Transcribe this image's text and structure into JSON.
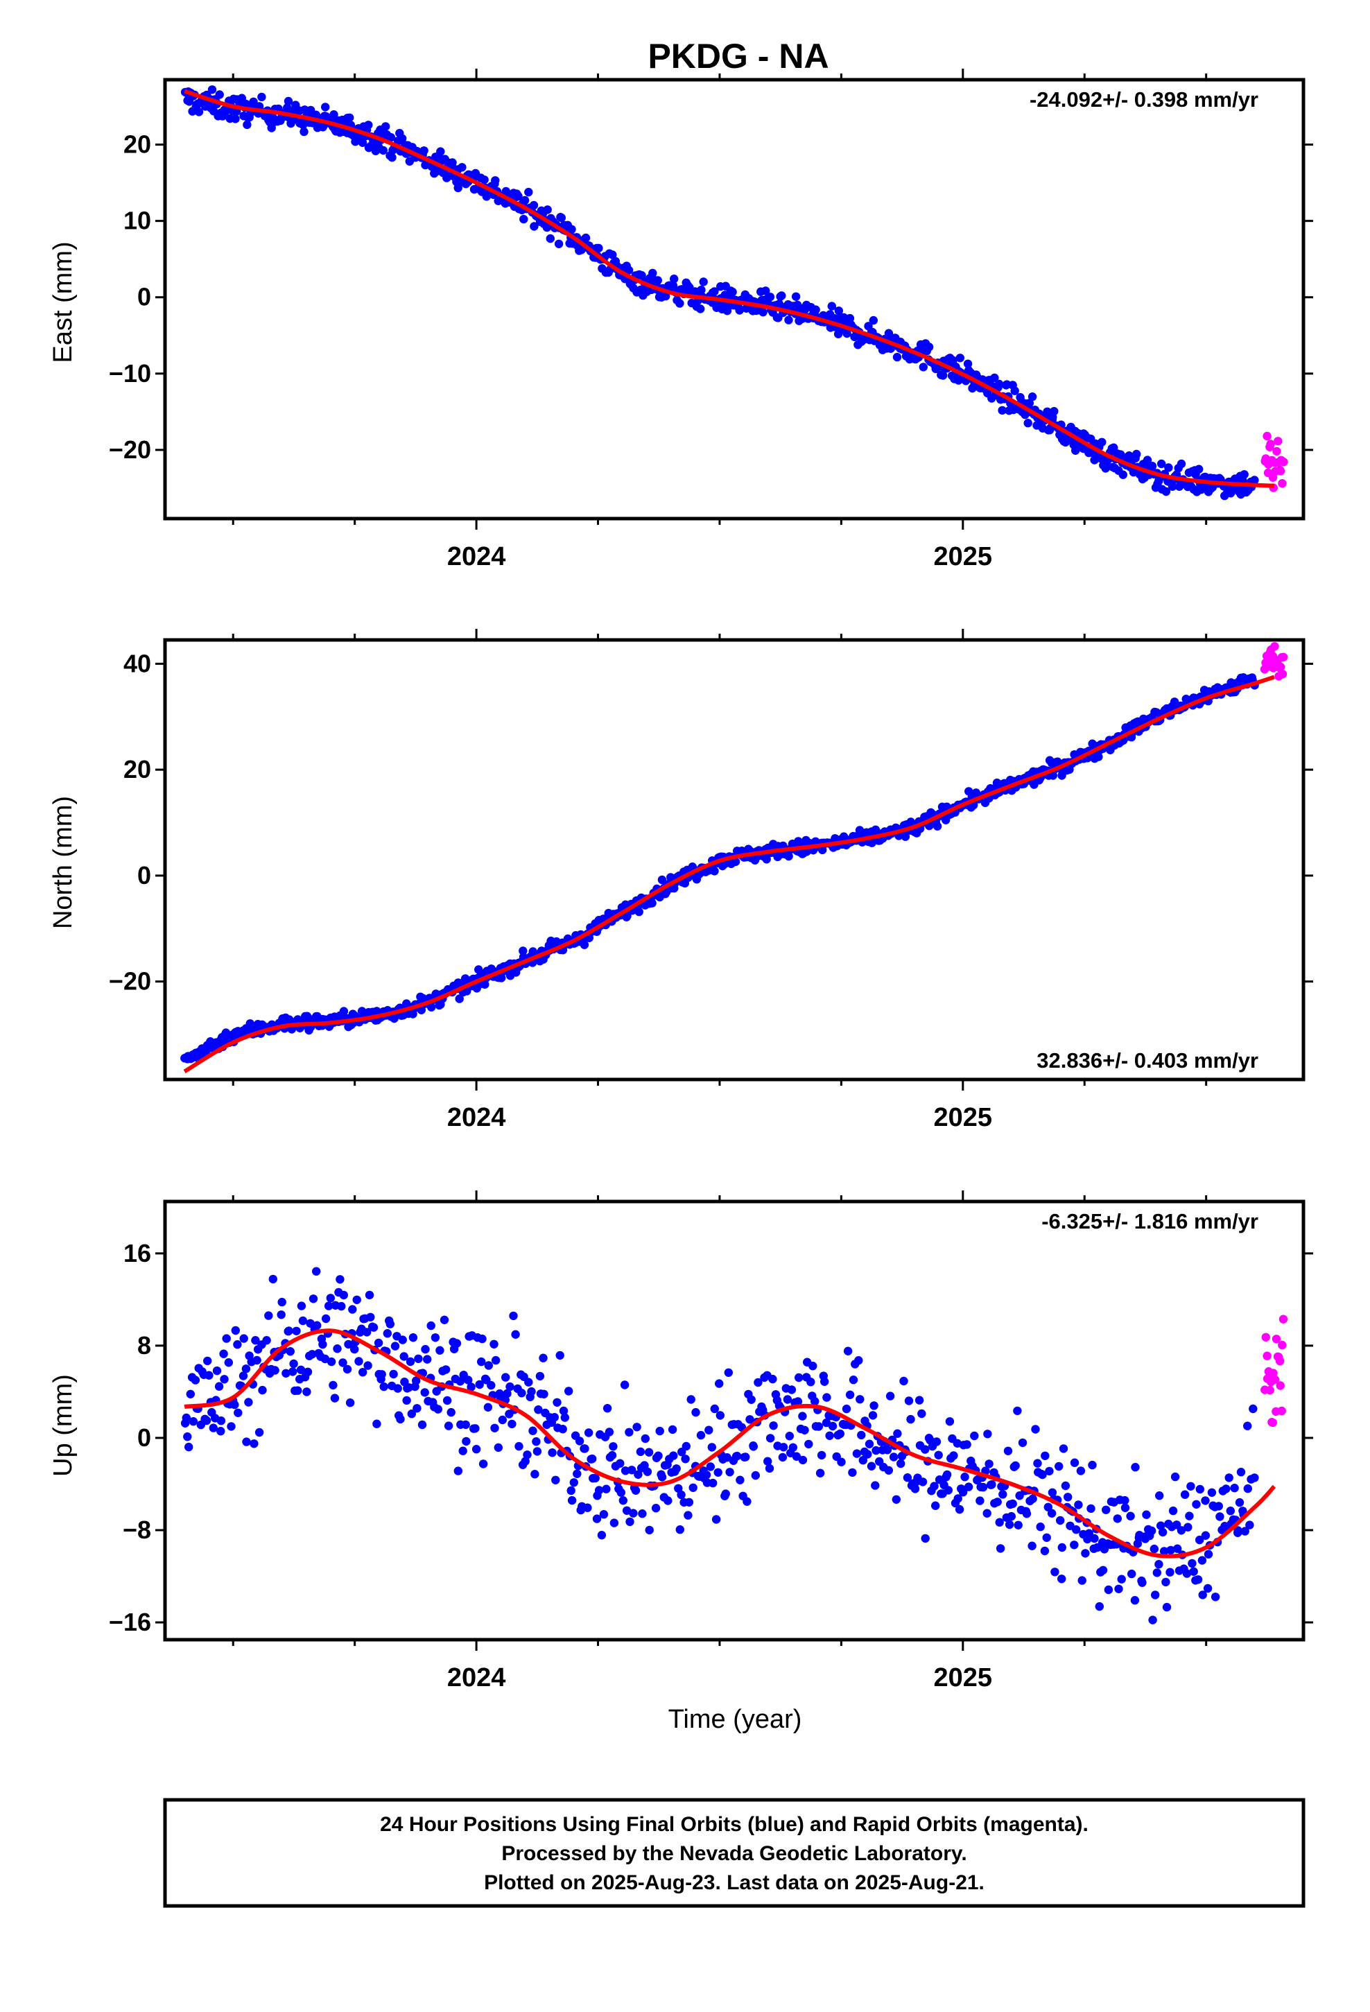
{
  "chart_data": [
    {
      "type": "scatter",
      "title": "PKDG - NA",
      "ylabel": "East (mm)",
      "rate": "-24.092+/- 0.398 mm/yr",
      "ylim": [
        -29,
        28.5
      ],
      "yticks": [
        -20,
        -10,
        0,
        10,
        20
      ],
      "xlim": [
        2023.36,
        2025.7
      ],
      "xticks": [
        2024,
        2025
      ],
      "x": [
        2023.4,
        2023.5,
        2023.6,
        2023.7,
        2023.8,
        2023.9,
        2024.0,
        2024.1,
        2024.2,
        2024.3,
        2024.4,
        2024.5,
        2024.6,
        2024.7,
        2024.8,
        2024.9,
        2025.0,
        2025.1,
        2025.2,
        2025.3,
        2025.4,
        2025.5,
        2025.6,
        2025.64
      ],
      "series": [
        {
          "name": "Final Orbits",
          "color": "#0000ff",
          "noise": 1.2,
          "x": [
            2023.4,
            2023.5,
            2023.6,
            2023.7,
            2023.8,
            2023.9,
            2024.0,
            2024.1,
            2024.2,
            2024.3,
            2024.4,
            2024.5,
            2024.6,
            2024.7,
            2024.8,
            2024.9,
            2025.0,
            2025.1,
            2025.2,
            2025.3,
            2025.4,
            2025.5,
            2025.6
          ],
          "values": [
            26.0,
            24.7,
            24.0,
            22.8,
            21.0,
            18.0,
            15.2,
            11.8,
            8.0,
            3.0,
            0.8,
            -0.2,
            -1.2,
            -2.6,
            -4.8,
            -7.0,
            -10.0,
            -13.5,
            -17.3,
            -21.0,
            -23.3,
            -24.2,
            -24.5
          ]
        },
        {
          "name": "Rapid Orbits",
          "color": "#ff00ff",
          "noise": 2.5,
          "x": [
            2025.62,
            2025.63,
            2025.64,
            2025.65,
            2025.66
          ],
          "values": [
            -22.0,
            -20.5,
            -23.5,
            -21.0,
            -24.0
          ]
        },
        {
          "name": "Fit",
          "color": "#ff0000",
          "values": [
            27.0,
            25.0,
            24.1,
            22.8,
            20.8,
            18.0,
            15.0,
            11.7,
            7.8,
            3.2,
            0.6,
            -0.3,
            -1.3,
            -2.8,
            -4.8,
            -7.2,
            -10.1,
            -13.5,
            -17.2,
            -20.8,
            -23.2,
            -24.2,
            -24.6,
            -24.7
          ]
        }
      ]
    },
    {
      "type": "scatter",
      "ylabel": "North (mm)",
      "rate": "32.836+/- 0.403 mm/yr",
      "ylim": [
        -38.5,
        44.5
      ],
      "yticks": [
        -20,
        0,
        20,
        40
      ],
      "xlim": [
        2023.36,
        2025.7
      ],
      "xticks": [
        2024,
        2025
      ],
      "x": [
        2023.4,
        2023.5,
        2023.6,
        2023.7,
        2023.8,
        2023.9,
        2024.0,
        2024.1,
        2024.2,
        2024.3,
        2024.4,
        2024.5,
        2024.6,
        2024.7,
        2024.8,
        2024.9,
        2025.0,
        2025.1,
        2025.2,
        2025.3,
        2025.4,
        2025.5,
        2025.6,
        2025.64
      ],
      "series": [
        {
          "name": "Final Orbits",
          "color": "#0000ff",
          "noise": 1.0,
          "x": [
            2023.4,
            2023.5,
            2023.6,
            2023.7,
            2023.8,
            2023.9,
            2024.0,
            2024.1,
            2024.2,
            2024.3,
            2024.4,
            2024.5,
            2024.6,
            2024.7,
            2024.8,
            2024.9,
            2025.0,
            2025.1,
            2025.2,
            2025.3,
            2025.4,
            2025.5,
            2025.6
          ],
          "values": [
            -35.0,
            -30.0,
            -28.0,
            -27.5,
            -26.5,
            -24.0,
            -20.0,
            -16.0,
            -12.5,
            -7.0,
            -1.5,
            3.0,
            4.5,
            5.5,
            7.0,
            9.0,
            13.5,
            17.0,
            20.5,
            25.0,
            30.0,
            34.0,
            37.0
          ]
        },
        {
          "name": "Rapid Orbits",
          "color": "#ff00ff",
          "noise": 1.5,
          "x": [
            2025.62,
            2025.63,
            2025.64,
            2025.65,
            2025.66
          ],
          "values": [
            40.5,
            41.5,
            41.0,
            40.0,
            41.0
          ]
        },
        {
          "name": "Fit",
          "color": "#ff0000",
          "values": [
            -37.0,
            -31.5,
            -28.5,
            -27.8,
            -26.5,
            -24.0,
            -20.0,
            -16.2,
            -12.3,
            -7.0,
            -1.5,
            2.8,
            4.5,
            5.6,
            7.0,
            9.2,
            13.4,
            17.0,
            20.5,
            25.0,
            29.5,
            33.5,
            36.3,
            37.5
          ]
        }
      ]
    },
    {
      "type": "scatter",
      "ylabel": "Up (mm)",
      "xlabel": "Time (year)",
      "rate": "-6.325+/- 1.816 mm/yr",
      "ylim": [
        -17.5,
        20.5
      ],
      "yticks": [
        -16,
        -8,
        0,
        8,
        16
      ],
      "xlim": [
        2023.36,
        2025.7
      ],
      "xticks": [
        2024,
        2025
      ],
      "x": [
        2023.4,
        2023.5,
        2023.6,
        2023.7,
        2023.8,
        2023.9,
        2024.0,
        2024.1,
        2024.2,
        2024.3,
        2024.4,
        2024.5,
        2024.6,
        2024.7,
        2024.8,
        2024.9,
        2025.0,
        2025.1,
        2025.2,
        2025.3,
        2025.4,
        2025.5,
        2025.6,
        2025.64
      ],
      "series": [
        {
          "name": "Final Orbits",
          "color": "#0000ff",
          "noise": 4.0,
          "x": [
            2023.4,
            2023.5,
            2023.6,
            2023.7,
            2023.8,
            2023.9,
            2024.0,
            2024.1,
            2024.2,
            2024.3,
            2024.4,
            2024.5,
            2024.6,
            2024.7,
            2024.8,
            2024.9,
            2025.0,
            2025.1,
            2025.2,
            2025.3,
            2025.4,
            2025.5,
            2025.6
          ],
          "values": [
            2.0,
            4.0,
            8.0,
            9.0,
            7.5,
            5.5,
            4.0,
            2.5,
            -1.0,
            -3.5,
            -3.5,
            -1.0,
            2.0,
            2.5,
            0.5,
            -2.0,
            -3.0,
            -4.5,
            -6.0,
            -9.0,
            -10.0,
            -8.5,
            -5.0
          ]
        },
        {
          "name": "Rapid Orbits",
          "color": "#ff00ff",
          "noise": 3.0,
          "x": [
            2025.62,
            2025.63,
            2025.64,
            2025.65,
            2025.66
          ],
          "values": [
            5.0,
            6.0,
            4.5,
            7.0,
            3.5
          ]
        },
        {
          "name": "Fit",
          "color": "#ff0000",
          "values": [
            2.7,
            3.5,
            7.8,
            9.3,
            7.5,
            5.0,
            3.8,
            2.0,
            -1.8,
            -3.8,
            -3.8,
            -1.2,
            2.0,
            2.7,
            0.8,
            -1.5,
            -2.7,
            -4.0,
            -5.8,
            -8.5,
            -10.2,
            -9.5,
            -6.0,
            -4.2
          ]
        }
      ]
    }
  ],
  "caption": [
    "24 Hour Positions Using Final Orbits (blue) and Rapid Orbits (magenta).",
    "Processed by the Nevada Geodetic Laboratory.",
    "Plotted on 2025-Aug-23. Last data on 2025-Aug-21."
  ]
}
